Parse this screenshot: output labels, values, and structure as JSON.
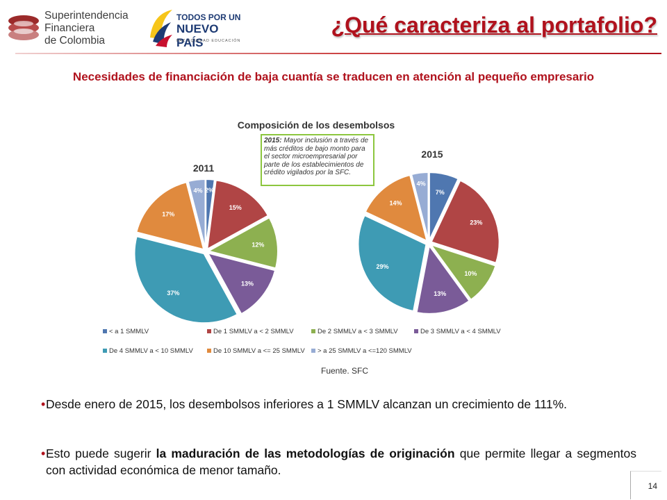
{
  "header": {
    "sfc_logo_lines": [
      "Superintendencia",
      "Financiera",
      "de Colombia"
    ],
    "tpnp_logo_lines": [
      "TODOS POR UN",
      "NUEVO PAÍS"
    ],
    "tpnp_tagline": "PAZ  EQUIDAD  EDUCACIÓN",
    "title": "¿Qué caracteriza al portafolio?"
  },
  "subtitle": "Necesidades de financiación de baja cuantía se traducen en atención al pequeño empresario",
  "callout": {
    "bold": "2015:",
    "text": " Mayor inclusión a través de más créditos de bajo monto para el sector  microempresarial por parte de los establecimientos de crédito vigilados por la SFC."
  },
  "source": "Fuente. SFC",
  "bullets": [
    {
      "parts": [
        "Desde enero de 2015, los desembolsos inferiores a 1 SMMLV alcanzan un crecimiento de 111%."
      ]
    },
    {
      "pre": "Esto puede sugerir ",
      "bold": "la maduración de las metodologías de originación",
      "post": " que permite llegar a segmentos con actividad económica de menor tamaño."
    }
  ],
  "page_number": "14",
  "colors": {
    "title_red": "#b0121d",
    "callout_border": "#8cc63e"
  },
  "chart_data": {
    "type": "pie",
    "title": "Composición de los desembolsos",
    "categories": [
      "< a 1 SMMLV",
      "De 1 SMMLV a < 2 SMMLV",
      "De 2 SMMLV a < 3 SMMLV",
      "De 3 SMMLV a < 4 SMMLV",
      "De 4 SMMLV a < 10 SMMLV",
      "De 10 SMMLV a <= 25 SMMLV",
      "> a 25 SMMLV a <=120 SMMLV"
    ],
    "colors": [
      "#4f77b0",
      "#b04545",
      "#8db050",
      "#7a5b98",
      "#3e9bb4",
      "#e08a3e",
      "#97acd4"
    ],
    "pies": [
      {
        "name": "2011",
        "values": [
          2,
          15,
          12,
          13,
          37,
          17,
          4
        ],
        "labels": [
          "2%",
          "15%",
          "12%",
          "13%",
          "37%",
          "17%",
          "4%"
        ]
      },
      {
        "name": "2015",
        "values": [
          7,
          23,
          10,
          13,
          29,
          14,
          4
        ],
        "labels": [
          "7%",
          "23%",
          "10%",
          "13%",
          "29%",
          "14%",
          "4%"
        ]
      }
    ],
    "legend_position": "bottom"
  }
}
